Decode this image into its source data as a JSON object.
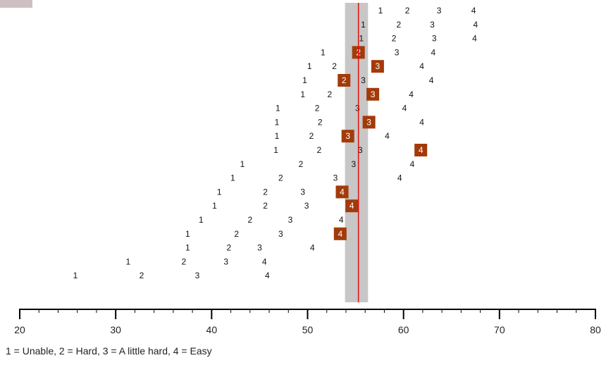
{
  "legend_text": "1 = Unable, 2 = Hard, 3 = A little hard, 4 = Easy",
  "colors": {
    "highlight_fill": "#a33a0a",
    "highlight_text": "#ffffff",
    "band_fill": "#c8c6c6",
    "mean_line": "#e01010",
    "axis": "#000000",
    "corner_tab": "#cdbfc2"
  },
  "chart_data": {
    "type": "scatter",
    "title": "",
    "xlabel": "",
    "ylabel": "",
    "xlim": [
      20,
      80
    ],
    "x_ticks": [
      20,
      30,
      40,
      50,
      60,
      70,
      80
    ],
    "x_minor_tick_step": 2,
    "reference_line": 55.3,
    "reference_band": [
      53.9,
      56.3
    ],
    "grid": false,
    "rows": [
      {
        "positions": [
          57.6,
          60.4,
          63.7,
          67.3
        ],
        "highlight": null
      },
      {
        "positions": [
          55.8,
          59.5,
          63.0,
          67.5
        ],
        "highlight": null
      },
      {
        "positions": [
          55.6,
          59.0,
          63.2,
          67.4
        ],
        "highlight": null
      },
      {
        "positions": [
          51.6,
          55.3,
          59.3,
          63.1
        ],
        "highlight": 2
      },
      {
        "positions": [
          50.2,
          52.8,
          57.3,
          61.9
        ],
        "highlight": 3
      },
      {
        "positions": [
          49.7,
          53.8,
          55.8,
          62.9
        ],
        "highlight": 2
      },
      {
        "positions": [
          49.5,
          52.3,
          56.8,
          60.8
        ],
        "highlight": 3
      },
      {
        "positions": [
          46.9,
          51.0,
          55.2,
          60.1
        ],
        "highlight": null
      },
      {
        "positions": [
          46.8,
          51.3,
          56.4,
          61.9
        ],
        "highlight": 3
      },
      {
        "positions": [
          46.8,
          50.4,
          54.2,
          58.3
        ],
        "highlight": 3
      },
      {
        "positions": [
          46.7,
          51.2,
          55.5,
          61.8
        ],
        "highlight": 4
      },
      {
        "positions": [
          43.2,
          49.3,
          54.8,
          60.9
        ],
        "highlight": null
      },
      {
        "positions": [
          42.2,
          47.2,
          52.9,
          59.6
        ],
        "highlight": null
      },
      {
        "positions": [
          40.8,
          45.6,
          49.5,
          53.6
        ],
        "highlight": 4
      },
      {
        "positions": [
          40.3,
          45.6,
          49.9,
          54.6
        ],
        "highlight": 4
      },
      {
        "positions": [
          38.9,
          44.0,
          48.2,
          53.5
        ],
        "highlight": null
      },
      {
        "positions": [
          37.5,
          42.6,
          47.2,
          53.4
        ],
        "highlight": 4
      },
      {
        "positions": [
          37.5,
          41.8,
          45.0,
          50.5
        ],
        "highlight": null
      },
      {
        "positions": [
          31.3,
          37.1,
          41.5,
          45.5
        ],
        "highlight": null
      },
      {
        "positions": [
          25.8,
          32.7,
          38.5,
          45.8
        ],
        "highlight": null
      }
    ],
    "row_labels": [
      "1",
      "2",
      "3",
      "4"
    ]
  }
}
